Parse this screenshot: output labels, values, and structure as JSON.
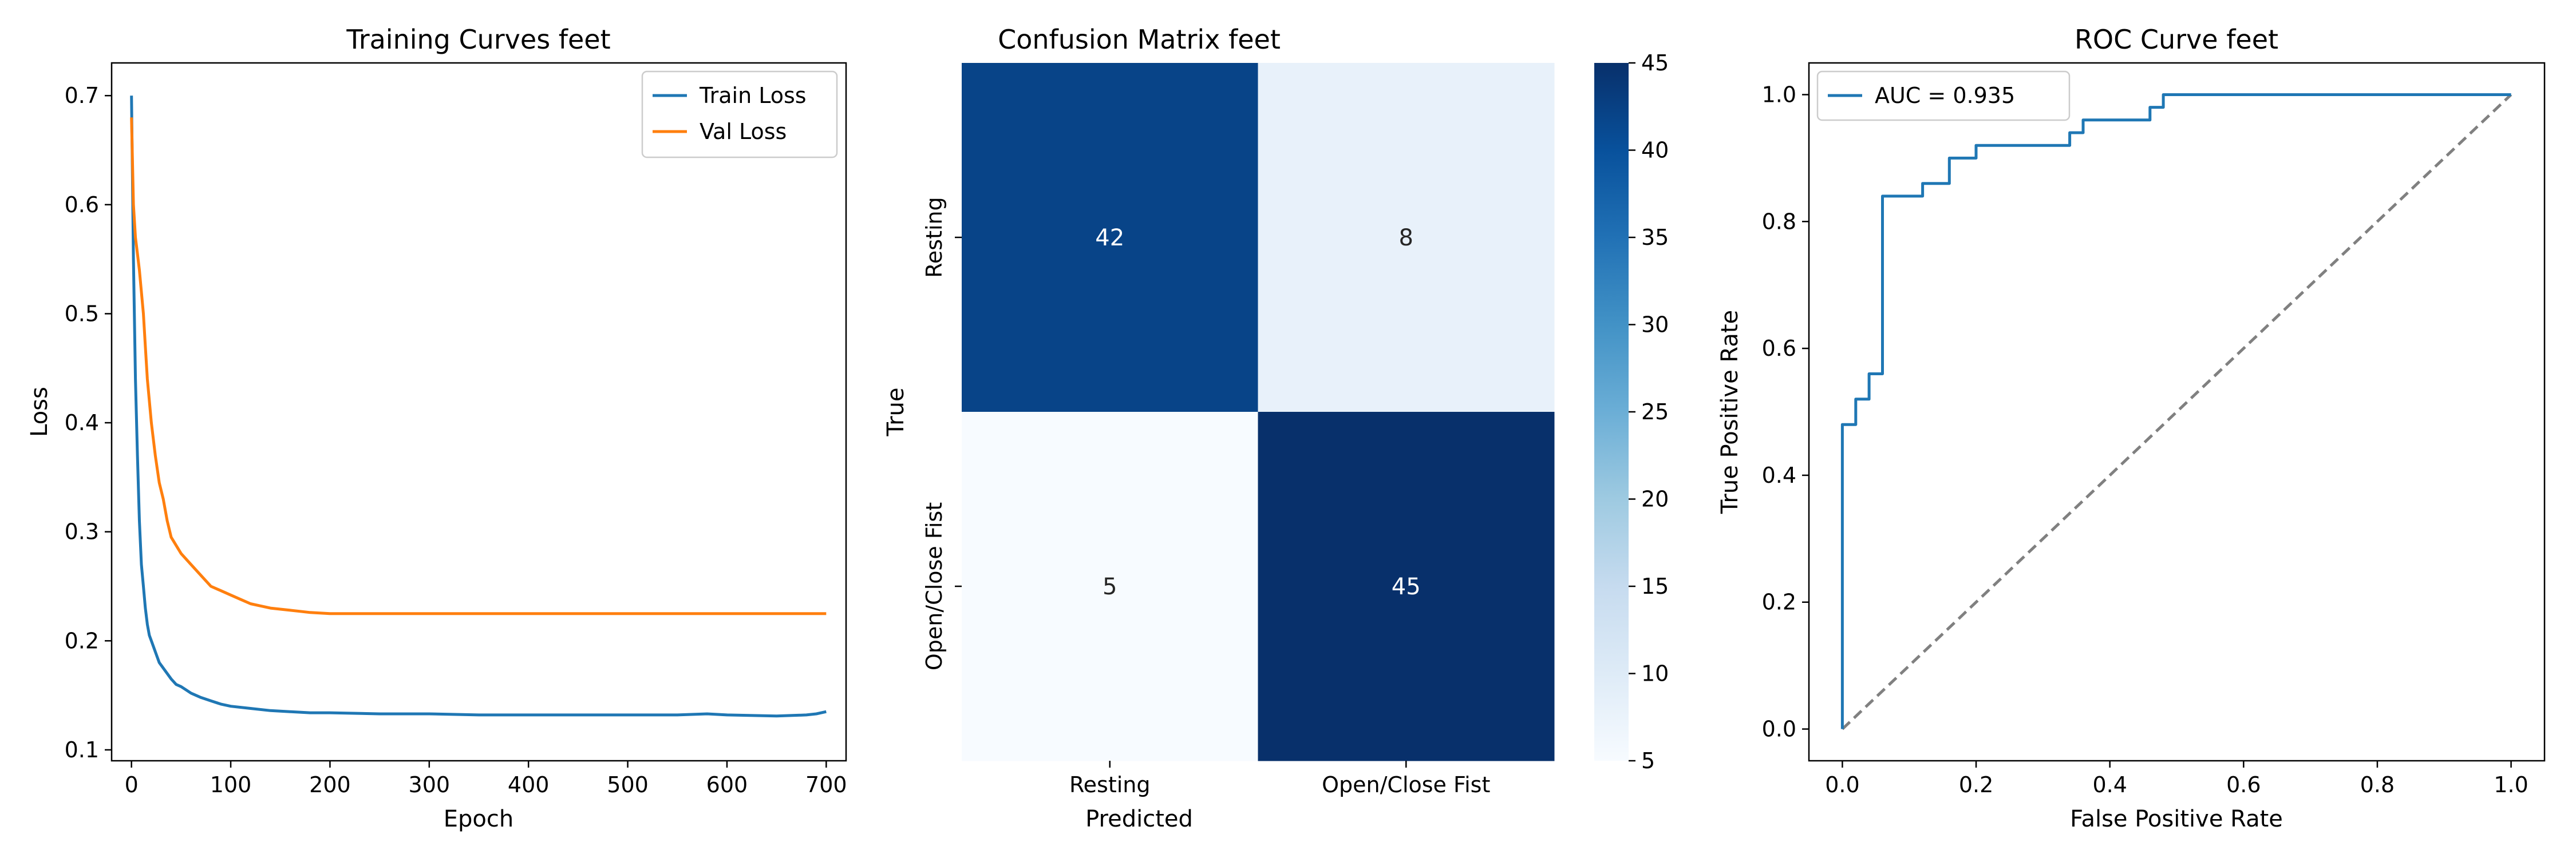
{
  "colors": {
    "train": "#1f77b4",
    "val": "#ff7f0e",
    "roc": "#1f77b4",
    "diagonal": "#808080",
    "cmap": [
      "#f7fbff",
      "#deebf7",
      "#c6dbef",
      "#9ecae1",
      "#6baed6",
      "#4292c6",
      "#2171b5",
      "#08519c",
      "#08306b"
    ]
  },
  "chart_data": [
    {
      "type": "line",
      "title": "Training Curves feet",
      "xlabel": "Epoch",
      "ylabel": "Loss",
      "xlim": [
        -20,
        720
      ],
      "ylim": [
        0.09,
        0.73
      ],
      "xticks": [
        0,
        100,
        200,
        300,
        400,
        500,
        600,
        700
      ],
      "yticks": [
        0.1,
        0.2,
        0.3,
        0.4,
        0.5,
        0.6,
        0.7
      ],
      "legend": "top-right",
      "series": [
        {
          "name": "Train Loss",
          "x": [
            0,
            2,
            4,
            6,
            8,
            10,
            12,
            14,
            16,
            18,
            20,
            24,
            28,
            32,
            36,
            40,
            45,
            50,
            55,
            60,
            70,
            80,
            90,
            100,
            120,
            140,
            160,
            180,
            200,
            250,
            300,
            350,
            400,
            450,
            500,
            550,
            580,
            600,
            650,
            680,
            690,
            700
          ],
          "y": [
            0.7,
            0.55,
            0.44,
            0.37,
            0.31,
            0.27,
            0.25,
            0.23,
            0.215,
            0.205,
            0.2,
            0.19,
            0.18,
            0.175,
            0.17,
            0.165,
            0.16,
            0.158,
            0.155,
            0.152,
            0.148,
            0.145,
            0.142,
            0.14,
            0.138,
            0.136,
            0.135,
            0.134,
            0.134,
            0.133,
            0.133,
            0.132,
            0.132,
            0.132,
            0.132,
            0.132,
            0.133,
            0.132,
            0.131,
            0.132,
            0.133,
            0.135
          ]
        },
        {
          "name": "Val Loss",
          "x": [
            0,
            2,
            4,
            6,
            8,
            10,
            12,
            14,
            16,
            18,
            20,
            24,
            28,
            32,
            36,
            40,
            50,
            60,
            70,
            80,
            90,
            100,
            110,
            120,
            130,
            140,
            150,
            160,
            170,
            180,
            200,
            250,
            300,
            350,
            400,
            450,
            500,
            550,
            600,
            650,
            700
          ],
          "y": [
            0.68,
            0.6,
            0.57,
            0.555,
            0.54,
            0.52,
            0.5,
            0.47,
            0.44,
            0.42,
            0.4,
            0.37,
            0.345,
            0.33,
            0.31,
            0.295,
            0.28,
            0.27,
            0.26,
            0.25,
            0.246,
            0.242,
            0.238,
            0.234,
            0.232,
            0.23,
            0.229,
            0.228,
            0.227,
            0.226,
            0.225,
            0.225,
            0.225,
            0.225,
            0.225,
            0.225,
            0.225,
            0.225,
            0.225,
            0.225,
            0.225
          ]
        }
      ]
    },
    {
      "type": "heatmap",
      "title": "Confusion Matrix feet",
      "xlabel": "Predicted",
      "ylabel": "True",
      "x_categories": [
        "Resting",
        "Open/Close Fist"
      ],
      "y_categories": [
        "Resting",
        "Open/Close Fist"
      ],
      "values": [
        [
          42,
          8
        ],
        [
          5,
          45
        ]
      ],
      "colorbar": {
        "min": 5,
        "max": 45,
        "ticks": [
          5,
          10,
          15,
          20,
          25,
          30,
          35,
          40,
          45
        ]
      }
    },
    {
      "type": "line",
      "title": "ROC Curve feet",
      "xlabel": "False Positive Rate",
      "ylabel": "True Positive Rate",
      "xlim": [
        -0.05,
        1.05
      ],
      "ylim": [
        -0.05,
        1.05
      ],
      "xticks": [
        0.0,
        0.2,
        0.4,
        0.6,
        0.8,
        1.0
      ],
      "yticks": [
        0.0,
        0.2,
        0.4,
        0.6,
        0.8,
        1.0
      ],
      "legend": "top-left",
      "series": [
        {
          "name": "AUC = 0.935",
          "x": [
            0.0,
            0.0,
            0.02,
            0.02,
            0.04,
            0.04,
            0.06,
            0.06,
            0.12,
            0.12,
            0.16,
            0.16,
            0.2,
            0.2,
            0.34,
            0.34,
            0.36,
            0.36,
            0.46,
            0.46,
            0.48,
            0.48,
            1.0
          ],
          "y": [
            0.0,
            0.48,
            0.48,
            0.52,
            0.52,
            0.56,
            0.56,
            0.84,
            0.84,
            0.86,
            0.86,
            0.9,
            0.9,
            0.92,
            0.92,
            0.94,
            0.94,
            0.96,
            0.96,
            0.98,
            0.98,
            1.0,
            1.0
          ]
        }
      ],
      "reference_line": {
        "x": [
          0,
          1
        ],
        "y": [
          0,
          1
        ]
      }
    }
  ]
}
